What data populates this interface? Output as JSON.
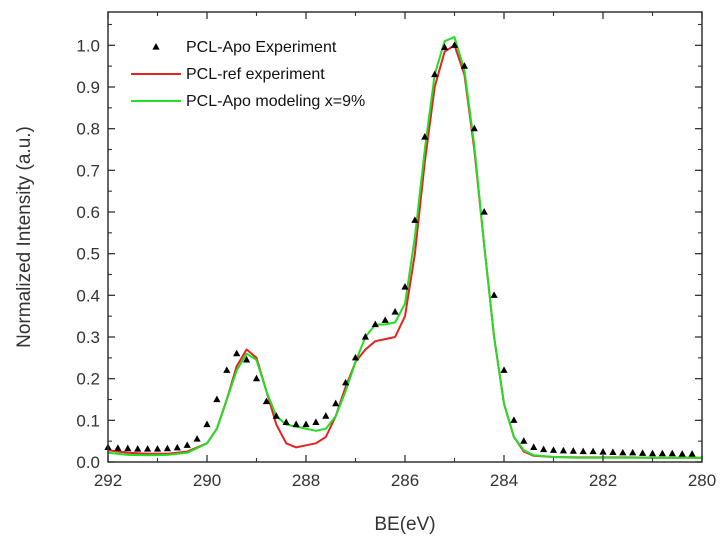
{
  "chart_data": {
    "type": "line",
    "title": "",
    "xlabel": "BE(eV)",
    "ylabel": "Normalized Intensity (a.u.)",
    "xlim": [
      292,
      280
    ],
    "ylim": [
      0.0,
      1.08
    ],
    "x_reversed": true,
    "grid": false,
    "legend_position": "top-left",
    "x_ticks": [
      "292",
      "290",
      "288",
      "286",
      "284",
      "282",
      "280"
    ],
    "y_ticks": [
      "0.0",
      "0.1",
      "0.2",
      "0.3",
      "0.4",
      "0.5",
      "0.6",
      "0.7",
      "0.8",
      "0.9",
      "1.0"
    ],
    "series": [
      {
        "name": "PCL-Apo Experiment",
        "style": "markers",
        "marker": "triangle",
        "color": "#000000",
        "x": [
          292.0,
          291.8,
          291.6,
          291.4,
          291.2,
          291.0,
          290.8,
          290.6,
          290.4,
          290.2,
          290.0,
          289.8,
          289.6,
          289.4,
          289.2,
          289.0,
          288.8,
          288.6,
          288.4,
          288.2,
          288.0,
          287.8,
          287.6,
          287.4,
          287.2,
          287.0,
          286.8,
          286.6,
          286.4,
          286.2,
          286.0,
          285.8,
          285.6,
          285.4,
          285.2,
          285.0,
          284.8,
          284.6,
          284.4,
          284.2,
          284.0,
          283.8,
          283.6,
          283.4,
          283.2,
          283.0,
          282.8,
          282.6,
          282.4,
          282.2,
          282.0,
          281.8,
          281.6,
          281.4,
          281.2,
          281.0,
          280.8,
          280.6,
          280.4,
          280.2
        ],
        "y": [
          0.035,
          0.033,
          0.032,
          0.031,
          0.031,
          0.031,
          0.032,
          0.034,
          0.04,
          0.055,
          0.09,
          0.15,
          0.22,
          0.26,
          0.245,
          0.2,
          0.145,
          0.11,
          0.095,
          0.09,
          0.09,
          0.095,
          0.11,
          0.14,
          0.19,
          0.25,
          0.3,
          0.33,
          0.34,
          0.36,
          0.42,
          0.58,
          0.78,
          0.93,
          0.995,
          1.0,
          0.95,
          0.8,
          0.6,
          0.4,
          0.22,
          0.1,
          0.05,
          0.035,
          0.03,
          0.028,
          0.027,
          0.026,
          0.025,
          0.025,
          0.024,
          0.023,
          0.022,
          0.022,
          0.021,
          0.02,
          0.02,
          0.02,
          0.019,
          0.019
        ]
      },
      {
        "name": "PCL-ref experiment",
        "style": "line",
        "color": "#e52222",
        "x": [
          292.0,
          291.6,
          291.2,
          290.8,
          290.4,
          290.0,
          289.8,
          289.6,
          289.4,
          289.2,
          289.0,
          288.8,
          288.6,
          288.4,
          288.2,
          288.0,
          287.8,
          287.6,
          287.4,
          287.2,
          287.0,
          286.8,
          286.6,
          286.4,
          286.2,
          286.0,
          285.8,
          285.6,
          285.4,
          285.2,
          285.0,
          284.8,
          284.6,
          284.4,
          284.2,
          284.0,
          283.8,
          283.6,
          283.4,
          283.0,
          282.5,
          282.0,
          281.5,
          281.0,
          280.5,
          280.0
        ],
        "y": [
          0.028,
          0.022,
          0.02,
          0.02,
          0.025,
          0.045,
          0.08,
          0.15,
          0.23,
          0.27,
          0.25,
          0.17,
          0.09,
          0.045,
          0.035,
          0.04,
          0.045,
          0.06,
          0.11,
          0.18,
          0.24,
          0.27,
          0.29,
          0.295,
          0.3,
          0.35,
          0.5,
          0.72,
          0.9,
          0.985,
          1.0,
          0.93,
          0.75,
          0.52,
          0.3,
          0.14,
          0.06,
          0.025,
          0.015,
          0.012,
          0.011,
          0.011,
          0.011,
          0.01,
          0.01,
          0.01
        ]
      },
      {
        "name": "PCL-Apo modeling x=9%",
        "style": "line",
        "color": "#22dd22",
        "x": [
          292.0,
          291.6,
          291.2,
          290.8,
          290.4,
          290.0,
          289.8,
          289.6,
          289.4,
          289.2,
          289.0,
          288.8,
          288.6,
          288.4,
          288.2,
          288.0,
          287.8,
          287.6,
          287.4,
          287.2,
          287.0,
          286.8,
          286.6,
          286.4,
          286.2,
          286.0,
          285.8,
          285.6,
          285.4,
          285.2,
          285.0,
          284.8,
          284.6,
          284.4,
          284.2,
          284.0,
          283.8,
          283.6,
          283.4,
          283.0,
          282.5,
          282.0,
          281.5,
          281.0,
          280.5,
          280.0
        ],
        "y": [
          0.022,
          0.017,
          0.016,
          0.017,
          0.022,
          0.045,
          0.08,
          0.15,
          0.22,
          0.26,
          0.245,
          0.17,
          0.11,
          0.09,
          0.085,
          0.08,
          0.075,
          0.08,
          0.11,
          0.17,
          0.24,
          0.3,
          0.33,
          0.33,
          0.335,
          0.38,
          0.54,
          0.75,
          0.93,
          1.01,
          1.02,
          0.94,
          0.76,
          0.52,
          0.3,
          0.14,
          0.06,
          0.028,
          0.016,
          0.012,
          0.01,
          0.01,
          0.01,
          0.01,
          0.01,
          0.01
        ]
      }
    ]
  }
}
